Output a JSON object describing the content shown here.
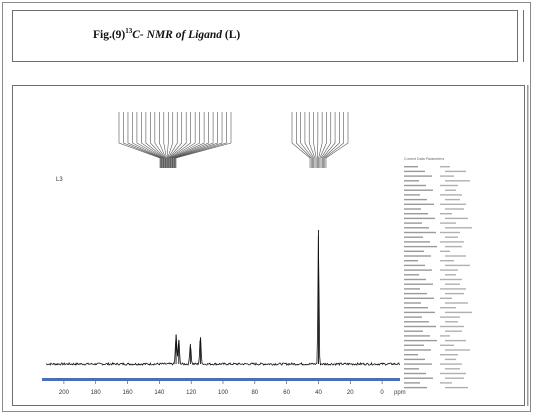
{
  "caption": {
    "prefix": "Fig.(9)",
    "superscript": "13",
    "italic": "C- NMR of Ligand",
    "suffix": " (L)"
  },
  "spectrum": {
    "sample_label": "L3",
    "axis_unit": "ppm",
    "axis_ticks": [
      "200",
      "180",
      "160",
      "140",
      "120",
      "100",
      "80",
      "60",
      "40",
      "20",
      "0"
    ],
    "params_title": "Current Data Parameters"
  },
  "chart_data": {
    "type": "line",
    "title": "",
    "xlabel": "ppm",
    "xlim": [
      210,
      -10
    ],
    "x_reversed": true,
    "peaks": [
      {
        "x": 129.5,
        "y": 0.22
      },
      {
        "x": 127.8,
        "y": 0.18
      },
      {
        "x": 120.5,
        "y": 0.15
      },
      {
        "x": 114.2,
        "y": 0.2
      },
      {
        "x": 40.0,
        "y": 1.0
      }
    ]
  }
}
